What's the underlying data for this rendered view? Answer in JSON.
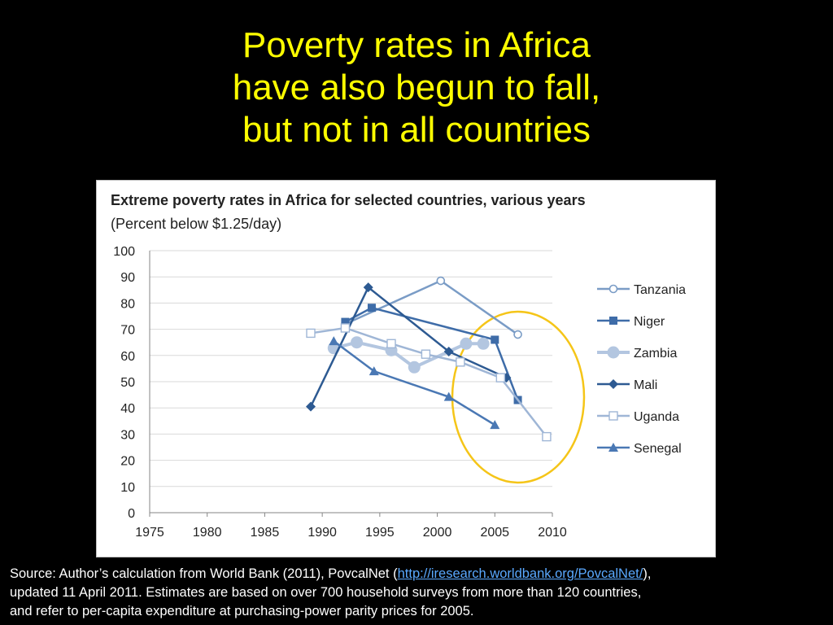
{
  "slide": {
    "title_lines": [
      "Poverty rates in Africa",
      "have also begun to fall,",
      "but not in all countries"
    ]
  },
  "source": {
    "prefix": "Source:  Author’s calculation from World Bank (2011), PovcalNet  (",
    "link": "http://iresearch.worldbank.org/PovcalNet/",
    "suffix": "),",
    "line2": "updated 11 April 2011.  Estimates are based on over 700 household surveys from more than 120 countries,",
    "line3": "and refer to per-capita expenditure at purchasing-power parity prices for 2005."
  },
  "colors": {
    "title": "#ffff00",
    "highlight_circle": "#f5c518",
    "link": "#5aa9ff"
  },
  "chart_data": {
    "type": "line",
    "title": "Extreme poverty rates in Africa for selected countries, various years",
    "subtitle": "(Percent below $1.25/day)",
    "xlim": [
      1975,
      2010
    ],
    "ylim": [
      0,
      100
    ],
    "xticks": [
      "1975",
      "1980",
      "1985",
      "1990",
      "1995",
      "2000",
      "2005",
      "2010"
    ],
    "yticks": [
      "0",
      "10",
      "20",
      "30",
      "40",
      "50",
      "60",
      "70",
      "80",
      "90",
      "100"
    ],
    "grid": true,
    "legend_position": "right",
    "series": [
      {
        "name": "Tanzania",
        "color": "#7a9cc6",
        "marker": "circle-open",
        "x": [
          1992,
          2000.3,
          2007
        ],
        "y": [
          72,
          88.5,
          68
        ]
      },
      {
        "name": "Niger",
        "color": "#3e6ca8",
        "marker": "square",
        "x": [
          1992,
          1994.3,
          2005,
          2007
        ],
        "y": [
          72.8,
          78.2,
          66,
          43
        ]
      },
      {
        "name": "Zambia",
        "color": "#b3c6e0",
        "marker": "circle-large",
        "x": [
          1991,
          1993,
          1996,
          1998,
          2002.5,
          2004
        ],
        "y": [
          62.8,
          65,
          62,
          55.5,
          64.5,
          64.5
        ]
      },
      {
        "name": "Mali",
        "color": "#2d5a92",
        "marker": "diamond",
        "x": [
          1989,
          1994,
          2001,
          2006
        ],
        "y": [
          40.5,
          86,
          61.5,
          51.5
        ]
      },
      {
        "name": "Uganda",
        "color": "#9fb6d6",
        "marker": "square-open",
        "x": [
          1989,
          1992,
          1996,
          1999,
          2002,
          2005.5,
          2009.5
        ],
        "y": [
          68.5,
          70.5,
          64.5,
          60.5,
          57.5,
          51.5,
          29
        ]
      },
      {
        "name": "Senegal",
        "color": "#4a78b4",
        "marker": "triangle",
        "x": [
          1991,
          1994.5,
          2001,
          2005
        ],
        "y": [
          65.5,
          54,
          44.2,
          33.5
        ]
      }
    ]
  }
}
